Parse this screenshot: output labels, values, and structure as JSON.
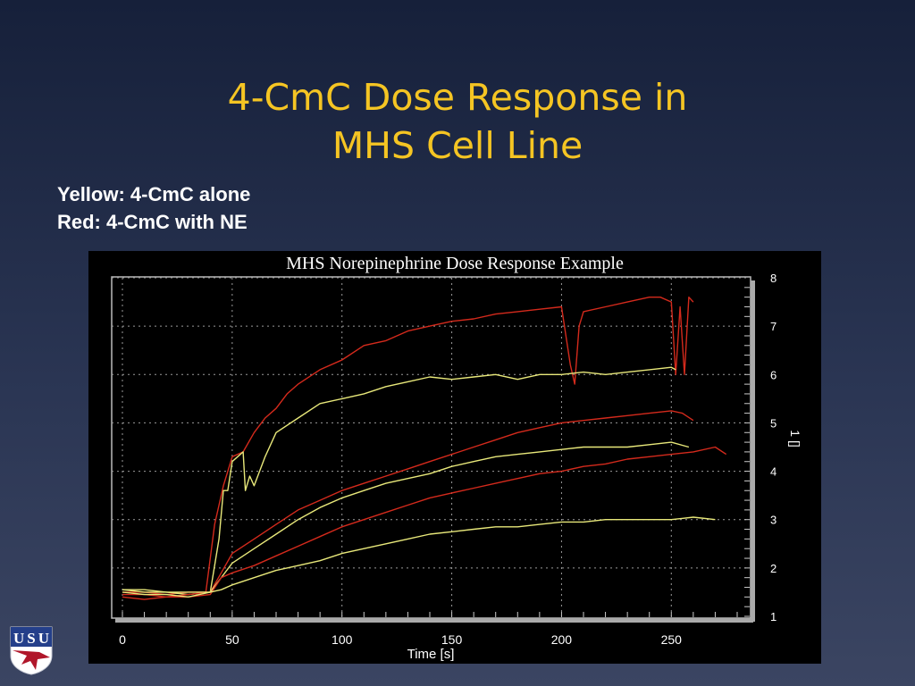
{
  "slide": {
    "title_line1": "4-CmC Dose Response in",
    "title_line2": "MHS Cell Line",
    "legend_line1": "Yellow: 4-CmC alone",
    "legend_line2": "Red: 4-CmC with NE",
    "logo_text": "USU"
  },
  "colors": {
    "title": "#f5c523",
    "yellow_series": "#e8e87a",
    "red_series": "#d42a1c",
    "background": "#1e2944"
  },
  "chart_data": {
    "type": "line",
    "title": "MHS Norepinephrine Dose Response Example",
    "xlabel": "Time [s]",
    "ylabel": "1 []",
    "xlim": [
      0,
      280
    ],
    "ylim": [
      1,
      8
    ],
    "xticks": [
      0,
      50,
      100,
      150,
      200,
      250
    ],
    "yticks": [
      1,
      2,
      3,
      4,
      5,
      6,
      7,
      8
    ],
    "grid": true,
    "series": [
      {
        "color": "red",
        "x": [
          0,
          10,
          20,
          30,
          38,
          42,
          46,
          50,
          55,
          60,
          65,
          70,
          75,
          80,
          90,
          100,
          110,
          120,
          130,
          140,
          150,
          160,
          170,
          180,
          190,
          200,
          204,
          206,
          208,
          210,
          220,
          230,
          240,
          245,
          250,
          252,
          254,
          256,
          258,
          260
        ],
        "y": [
          1.5,
          1.5,
          1.45,
          1.5,
          1.5,
          2.9,
          3.7,
          4.3,
          4.4,
          4.8,
          5.1,
          5.3,
          5.6,
          5.8,
          6.1,
          6.3,
          6.6,
          6.7,
          6.9,
          7.0,
          7.1,
          7.15,
          7.25,
          7.3,
          7.35,
          7.4,
          6.2,
          5.8,
          7.0,
          7.3,
          7.4,
          7.5,
          7.6,
          7.6,
          7.5,
          6.0,
          7.4,
          6.0,
          7.6,
          7.5
        ]
      },
      {
        "color": "yellow",
        "x": [
          0,
          10,
          20,
          30,
          40,
          44,
          46,
          48,
          50,
          55,
          56,
          58,
          60,
          65,
          70,
          80,
          90,
          100,
          110,
          120,
          130,
          140,
          150,
          160,
          170,
          180,
          190,
          200,
          210,
          220,
          230,
          240,
          250,
          252
        ],
        "y": [
          1.55,
          1.5,
          1.5,
          1.45,
          1.5,
          2.6,
          3.6,
          3.6,
          4.2,
          4.4,
          3.6,
          3.9,
          3.7,
          4.3,
          4.8,
          5.1,
          5.4,
          5.5,
          5.6,
          5.75,
          5.85,
          5.95,
          5.9,
          5.95,
          6.0,
          5.9,
          6.0,
          6.0,
          6.05,
          6.0,
          6.05,
          6.1,
          6.15,
          6.1
        ]
      },
      {
        "color": "red",
        "x": [
          0,
          10,
          20,
          30,
          40,
          45,
          50,
          60,
          70,
          80,
          90,
          100,
          110,
          120,
          130,
          140,
          150,
          160,
          170,
          180,
          190,
          200,
          210,
          220,
          230,
          240,
          250,
          255,
          260
        ],
        "y": [
          1.45,
          1.45,
          1.4,
          1.45,
          1.5,
          1.9,
          2.3,
          2.6,
          2.9,
          3.2,
          3.4,
          3.6,
          3.75,
          3.9,
          4.05,
          4.2,
          4.35,
          4.5,
          4.65,
          4.8,
          4.9,
          5.0,
          5.05,
          5.1,
          5.15,
          5.2,
          5.25,
          5.2,
          5.05
        ]
      },
      {
        "color": "yellow",
        "x": [
          0,
          10,
          20,
          30,
          40,
          45,
          50,
          60,
          70,
          80,
          90,
          100,
          110,
          120,
          130,
          140,
          150,
          160,
          170,
          180,
          190,
          200,
          210,
          220,
          230,
          240,
          250,
          258
        ],
        "y": [
          1.55,
          1.55,
          1.5,
          1.5,
          1.5,
          1.8,
          2.1,
          2.4,
          2.7,
          3.0,
          3.25,
          3.45,
          3.6,
          3.75,
          3.85,
          3.95,
          4.1,
          4.2,
          4.3,
          4.35,
          4.4,
          4.45,
          4.5,
          4.5,
          4.5,
          4.55,
          4.6,
          4.5
        ]
      },
      {
        "color": "red",
        "x": [
          0,
          10,
          20,
          30,
          40,
          45,
          50,
          60,
          70,
          80,
          90,
          100,
          110,
          120,
          130,
          140,
          150,
          160,
          170,
          180,
          190,
          200,
          210,
          220,
          230,
          240,
          250,
          260,
          270,
          275
        ],
        "y": [
          1.4,
          1.35,
          1.4,
          1.4,
          1.45,
          1.8,
          1.9,
          2.05,
          2.25,
          2.45,
          2.65,
          2.85,
          3.0,
          3.15,
          3.3,
          3.45,
          3.55,
          3.65,
          3.75,
          3.85,
          3.95,
          4.0,
          4.1,
          4.15,
          4.25,
          4.3,
          4.35,
          4.4,
          4.5,
          4.35
        ]
      },
      {
        "color": "yellow",
        "x": [
          0,
          10,
          20,
          30,
          40,
          45,
          50,
          60,
          70,
          80,
          90,
          100,
          110,
          120,
          130,
          140,
          150,
          160,
          170,
          180,
          190,
          200,
          210,
          220,
          230,
          240,
          250,
          260,
          270
        ],
        "y": [
          1.5,
          1.45,
          1.45,
          1.4,
          1.5,
          1.55,
          1.65,
          1.8,
          1.95,
          2.05,
          2.15,
          2.3,
          2.4,
          2.5,
          2.6,
          2.7,
          2.75,
          2.8,
          2.85,
          2.85,
          2.9,
          2.95,
          2.95,
          3.0,
          3.0,
          3.0,
          3.0,
          3.05,
          3.0
        ]
      }
    ]
  }
}
